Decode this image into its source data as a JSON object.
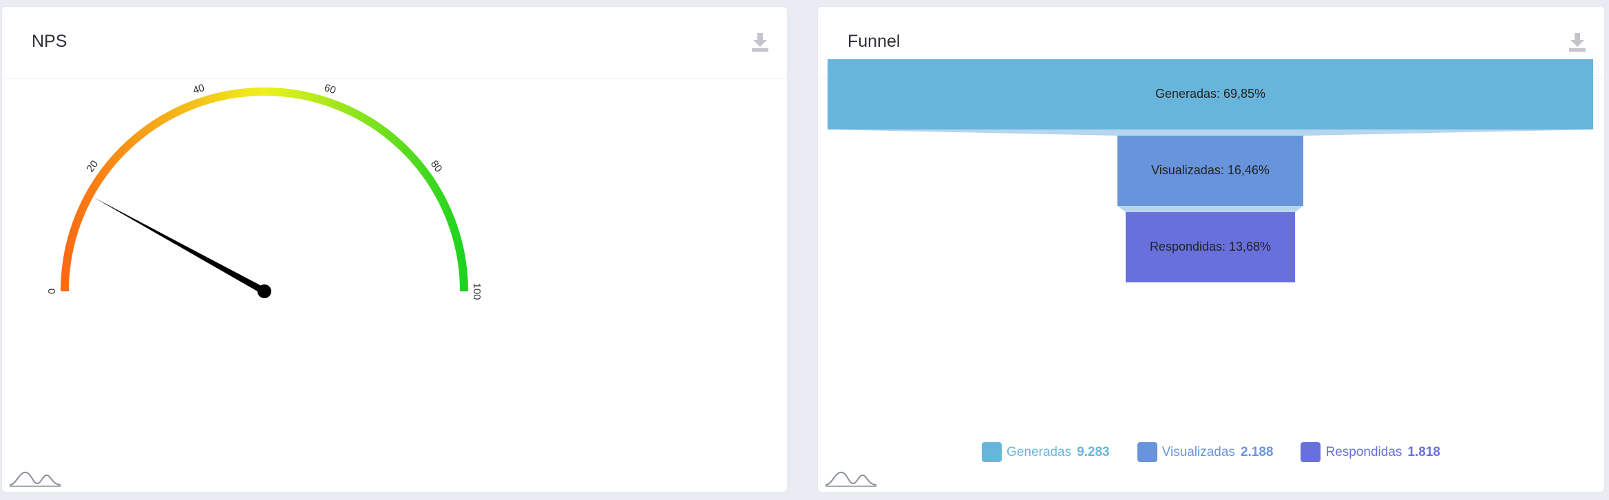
{
  "nps_card": {
    "title": "NPS",
    "download_icon": "download-icon",
    "footer_icon": "wave-chart-icon"
  },
  "funnel_card": {
    "title": "Funnel",
    "download_icon": "download-icon",
    "footer_icon": "wave-chart-icon"
  },
  "chart_data": [
    {
      "type": "gauge",
      "min": 0,
      "max": 100,
      "value": 16,
      "tick_labels": [
        "0",
        "20",
        "40",
        "60",
        "80",
        "100"
      ],
      "tick_values": [
        0,
        20,
        40,
        60,
        80,
        100
      ],
      "colors": {
        "start": "#fb6a14",
        "mid": "#eef21c",
        "end": "#1cd320",
        "needle": "#000000"
      }
    },
    {
      "type": "funnel",
      "stages": [
        {
          "name": "Generadas",
          "label": "Generadas: 69,85%",
          "percent": 69.85,
          "value": "9.283",
          "color": "#68b5dc"
        },
        {
          "name": "Visualizadas",
          "label": "Visualizadas: 16,46%",
          "percent": 16.46,
          "value": "2.188",
          "color": "#6894dc"
        },
        {
          "name": "Respondidas",
          "label": "Respondidas: 13,68%",
          "percent": 13.68,
          "value": "1.818",
          "color": "#6870dc"
        }
      ],
      "connector_color": "#b5d6ee"
    }
  ]
}
